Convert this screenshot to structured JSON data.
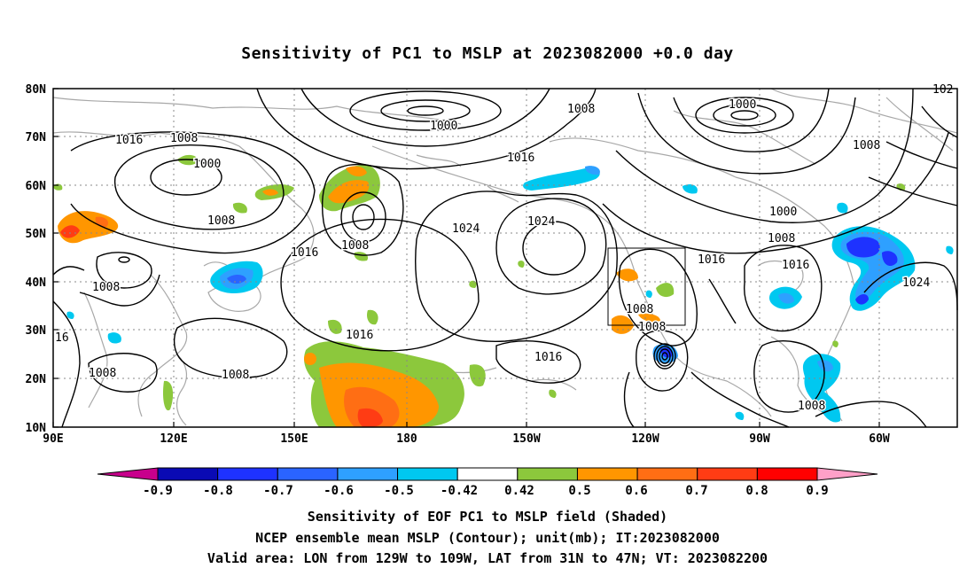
{
  "title": "Sensitivity of PC1 to MSLP at 2023082000 +0.0 day",
  "lat_labels": [
    "80N",
    "70N",
    "60N",
    "50N",
    "40N",
    "30N",
    "20N",
    "10N"
  ],
  "lon_labels": [
    "90E",
    "120E",
    "150E",
    "180",
    "150W",
    "120W",
    "90W",
    "60W"
  ],
  "contour_labels": [
    {
      "text": "1000"
    },
    {
      "text": "1000"
    },
    {
      "text": "1000"
    },
    {
      "text": "1000"
    },
    {
      "text": "1008"
    },
    {
      "text": "1008"
    },
    {
      "text": "1008"
    },
    {
      "text": "1008"
    },
    {
      "text": "1008"
    },
    {
      "text": "1008"
    },
    {
      "text": "1008"
    },
    {
      "text": "1008"
    },
    {
      "text": "1008"
    },
    {
      "text": "1008"
    },
    {
      "text": "1008"
    },
    {
      "text": "1008"
    },
    {
      "text": "1016"
    },
    {
      "text": "1016"
    },
    {
      "text": "1016"
    },
    {
      "text": "1016"
    },
    {
      "text": "1016"
    },
    {
      "text": "1016"
    },
    {
      "text": "1016"
    },
    {
      "text": "16"
    },
    {
      "text": "1024"
    },
    {
      "text": "1024"
    },
    {
      "text": "1024"
    },
    {
      "text": "102"
    }
  ],
  "colorbar": {
    "labels": [
      "-0.9",
      "-0.8",
      "-0.7",
      "-0.6",
      "-0.5",
      "-0.42",
      "0.42",
      "0.5",
      "0.6",
      "0.7",
      "0.8",
      "0.9"
    ],
    "colors": [
      "#0a0ab4",
      "#1e32ff",
      "#2a64ff",
      "#2ea0ff",
      "#00c8f0",
      "#ffffff",
      "#8cc83c",
      "#ff9600",
      "#ff6e14",
      "#ff3c14",
      "#ff0000"
    ],
    "left_triangle_color": "#c8008c",
    "right_triangle_color": "#ffa0c8"
  },
  "captions": [
    "Sensitivity of EOF PC1 to MSLP field (Shaded)",
    "NCEP ensemble mean MSLP (Contour); unit(mb); IT:2023082000",
    "Valid area: LON from 129W to 109W, LAT from 31N to 47N; VT: 2023082200"
  ]
}
